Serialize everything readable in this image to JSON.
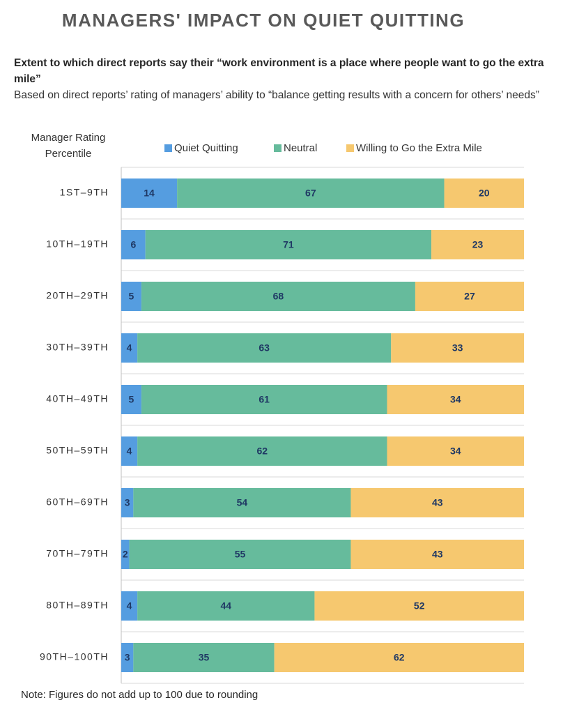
{
  "chart_data": {
    "type": "bar",
    "orientation": "horizontal",
    "stacked": true,
    "normalized": true,
    "title": "MANAGERS' IMPACT ON QUIET QUITTING",
    "subtitle": "Extent to which direct reports say their “work environment is a place where people want to go the extra mile”",
    "description": "Based on direct reports’ rating of managers’ ability to “balance getting results with a concern for others’ needs”",
    "y_axis_label": "Manager Rating Percentile",
    "note": "Note: Figures do not add up to 100 due to rounding",
    "categories": [
      "1ST–9TH",
      "10TH–19TH",
      "20TH–29TH",
      "30TH–39TH",
      "40TH–49TH",
      "50TH–59TH",
      "60TH–69TH",
      "70TH–79TH",
      "80TH–89TH",
      "90TH–100TH"
    ],
    "series": [
      {
        "name": "Quiet Quitting",
        "color": "#559de0",
        "values": [
          14,
          6,
          5,
          4,
          5,
          4,
          3,
          2,
          4,
          3
        ]
      },
      {
        "name": "Neutral",
        "color": "#66bb9c",
        "values": [
          67,
          71,
          68,
          63,
          61,
          62,
          54,
          55,
          44,
          35
        ]
      },
      {
        "name": "Willing to Go the Extra Mile",
        "color": "#f6c86f",
        "values": [
          20,
          23,
          27,
          33,
          34,
          34,
          43,
          43,
          52,
          62
        ]
      }
    ]
  }
}
